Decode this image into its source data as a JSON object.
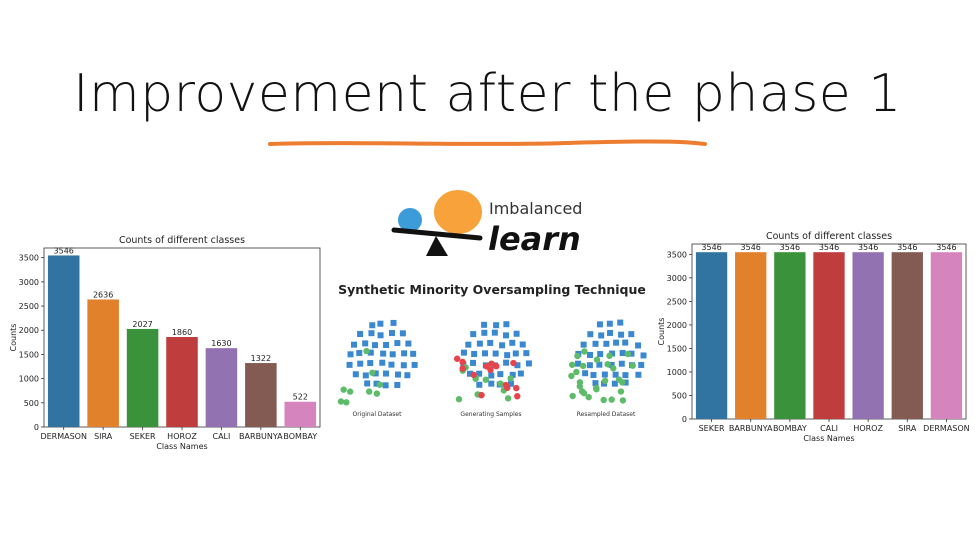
{
  "slide": {
    "title": "Improvement after the phase 1",
    "underline_color": "#ED7D31"
  },
  "colors": {
    "blue": "#3274A1",
    "orange": "#E1812C",
    "green": "#3A923A",
    "red": "#C03D3E",
    "purple": "#9372B2",
    "brown": "#845B53",
    "pink": "#D684BD"
  },
  "chart_data": [
    {
      "type": "bar",
      "title": "Counts of different classes",
      "xlabel": "Class Names",
      "ylabel": "Counts",
      "categories": [
        "DERMASON",
        "SIRA",
        "SEKER",
        "HOROZ",
        "CALI",
        "BARBUNYA",
        "BOMBAY"
      ],
      "values": [
        3546,
        2636,
        2027,
        1860,
        1630,
        1322,
        522
      ],
      "bar_colors": [
        "#3274A1",
        "#E1812C",
        "#3A923A",
        "#C03D3E",
        "#9372B2",
        "#845B53",
        "#D684BD"
      ],
      "ylim": [
        0,
        3700
      ],
      "yticks": [
        0,
        500,
        1000,
        1500,
        2000,
        2500,
        3000,
        3500
      ],
      "grid": false,
      "legend": "none"
    },
    {
      "type": "bar",
      "title": "Counts of different classes",
      "xlabel": "Class Names",
      "ylabel": "Counts",
      "categories": [
        "SEKER",
        "BARBUNYA",
        "BOMBAY",
        "CALI",
        "HOROZ",
        "SIRA",
        "DERMASON"
      ],
      "values": [
        3546,
        3546,
        3546,
        3546,
        3546,
        3546,
        3546
      ],
      "bar_colors": [
        "#3274A1",
        "#E1812C",
        "#3A923A",
        "#C03D3E",
        "#9372B2",
        "#845B53",
        "#D684BD"
      ],
      "ylim": [
        0,
        3720
      ],
      "yticks": [
        0,
        500,
        1000,
        1500,
        2000,
        2500,
        3000,
        3500
      ],
      "grid": false,
      "legend": "none"
    }
  ],
  "smote": {
    "logo_text_top": "Imbalanced",
    "logo_text_bottom": "learn",
    "heading": "Synthetic Minority Oversampling Technique",
    "panels": [
      "Original Dataset",
      "Generating Samples",
      "Resampled Dataset"
    ],
    "majority_color": "#3A88D0",
    "minority_color": "#5DBB6A",
    "synthetic_color": "#E8434A",
    "logo_blue": "#3C9BD9",
    "logo_orange": "#F7A23B"
  }
}
